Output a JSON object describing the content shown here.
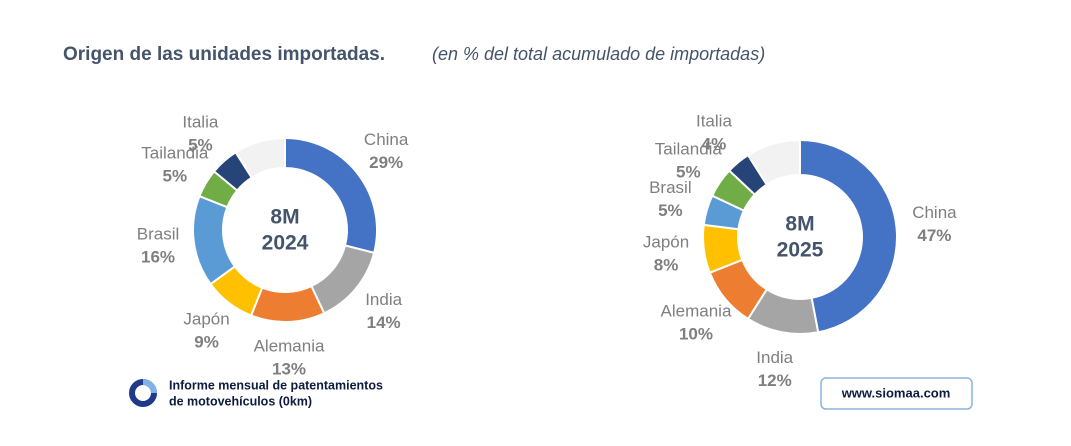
{
  "header": {
    "title": "Origen de las unidades importadas.",
    "subtitle": "(en % del total acumulado de importadas)"
  },
  "chart_data": [
    {
      "type": "pie",
      "donut": true,
      "center_label": [
        "8M",
        "2024"
      ],
      "categories": [
        "China",
        "India",
        "Alemania",
        "Japón",
        "Brasil",
        "Tailandia",
        "Italia",
        null
      ],
      "values": [
        29,
        14,
        13,
        9,
        16,
        5,
        5,
        9
      ],
      "value_labels": [
        "29%",
        "14%",
        "13%",
        "9%",
        "16%",
        "5%",
        "5%",
        null
      ],
      "colors": [
        "#4472c4",
        "#a5a5a5",
        "#ed7d31",
        "#ffc000",
        "#5b9bd5",
        "#70ad47",
        "#264478",
        "#f2f2f2"
      ]
    },
    {
      "type": "pie",
      "donut": true,
      "center_label": [
        "8M",
        "2025"
      ],
      "categories": [
        "China",
        "India",
        "Alemania",
        "Japón",
        "Brasil",
        "Tailandia",
        "Italia",
        null
      ],
      "values": [
        47,
        12,
        10,
        8,
        5,
        5,
        4,
        9
      ],
      "value_labels": [
        "47%",
        "12%",
        "10%",
        "8%",
        "5%",
        "5%",
        "4%",
        null
      ],
      "colors": [
        "#4472c4",
        "#a5a5a5",
        "#ed7d31",
        "#ffc000",
        "#5b9bd5",
        "#70ad47",
        "#264478",
        "#f2f2f2"
      ]
    }
  ],
  "footer": {
    "report_lines": [
      "Informe mensual de patentamientos",
      "de motovehículos (0km)"
    ],
    "website": "www.siomaa.com"
  }
}
